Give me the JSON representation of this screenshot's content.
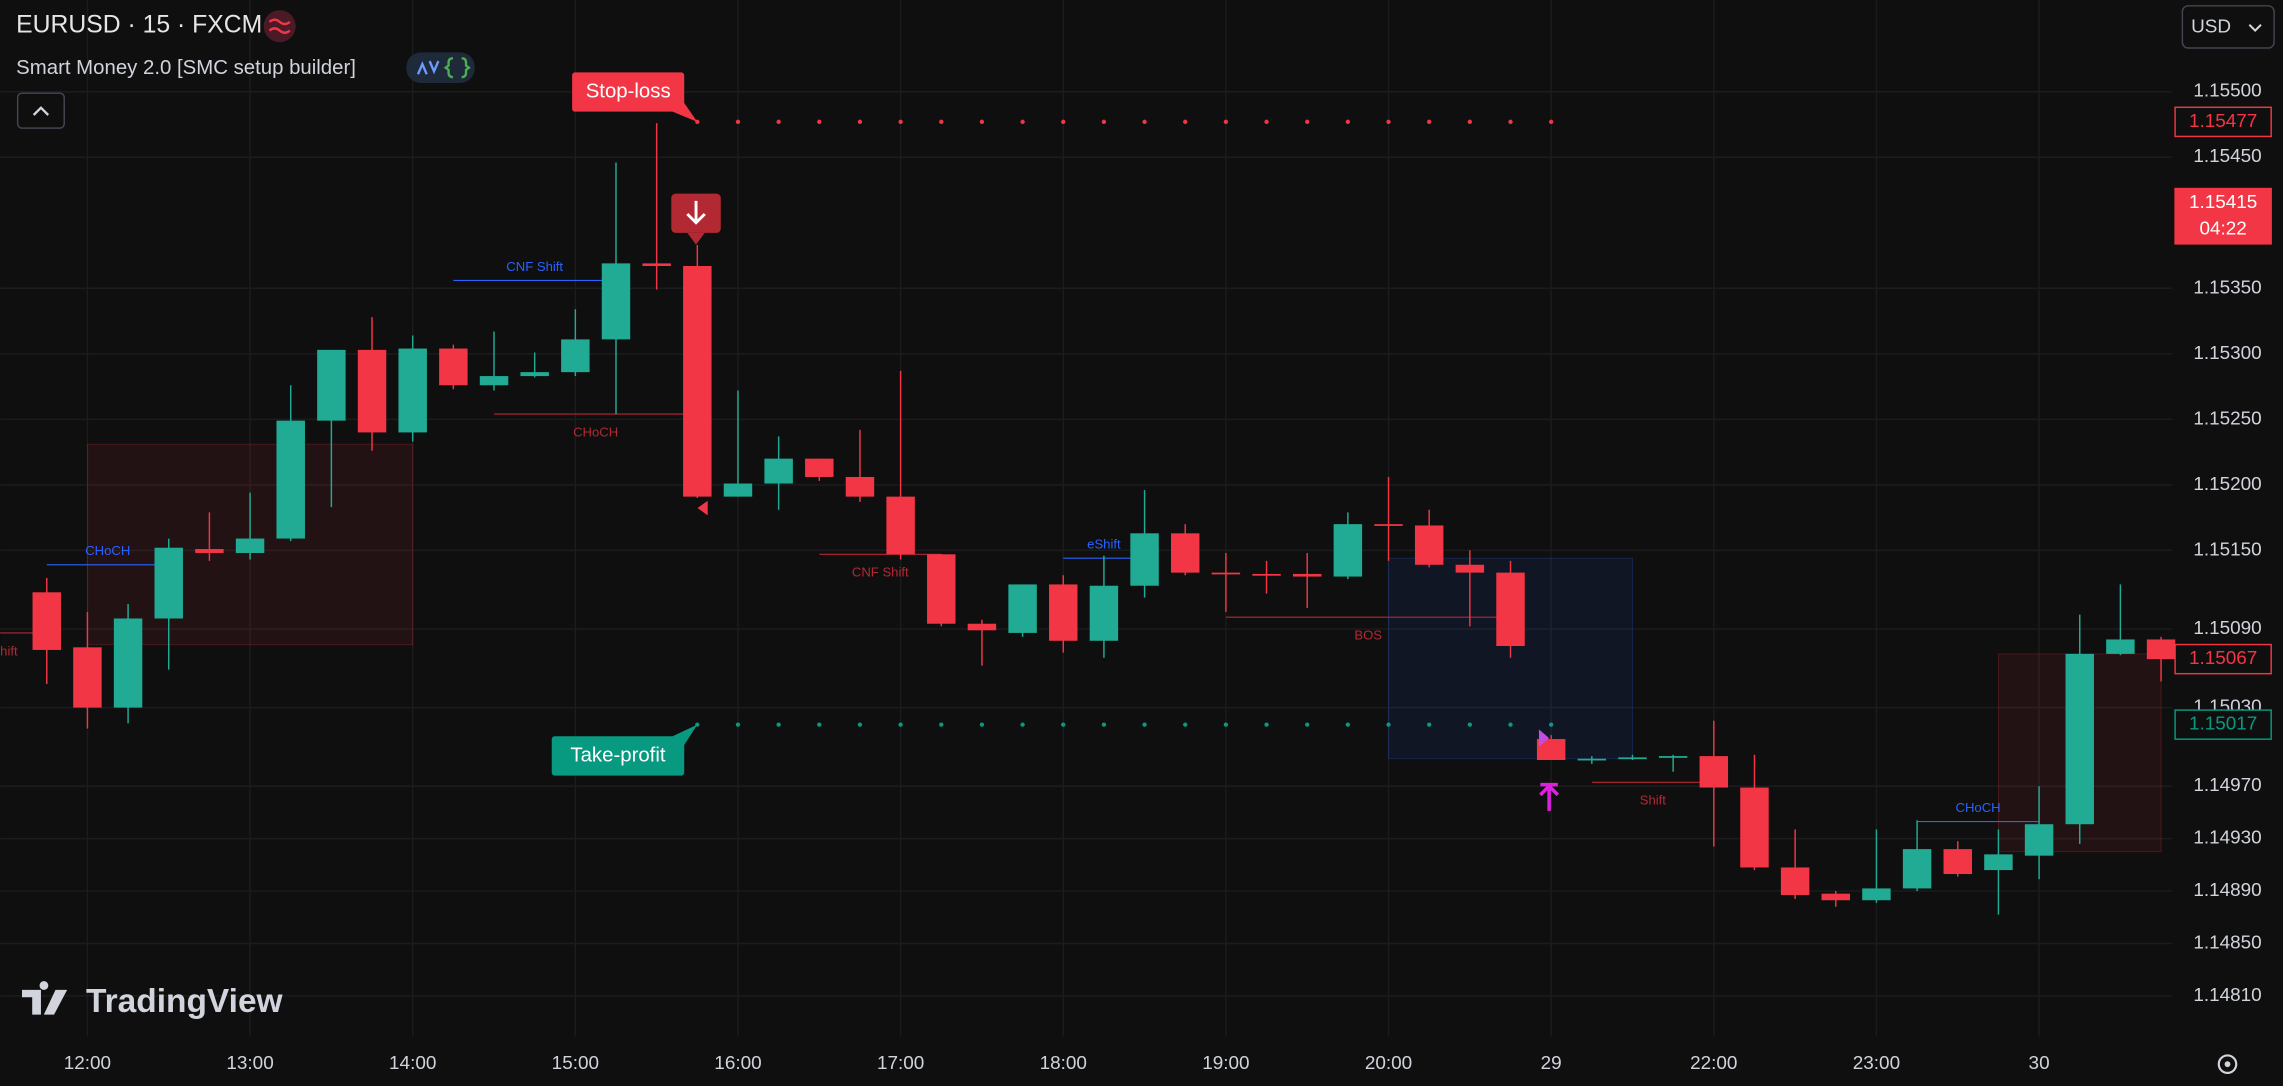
{
  "header": {
    "symbol": "EURUSD · 15 · FXCM",
    "indicator": "Smart Money 2.0 [SMC setup builder]",
    "currency": "USD",
    "brand": "TradingView"
  },
  "chart_data": {
    "type": "candlestick",
    "categories": [
      null,
      "12:00",
      null,
      null,
      null,
      "13:00",
      null,
      null,
      null,
      "14:00",
      null,
      null,
      null,
      "15:00",
      null,
      null,
      null,
      "16:00",
      null,
      null,
      null,
      "17:00",
      null,
      null,
      null,
      "18:00",
      null,
      null,
      null,
      "19:00",
      null,
      null,
      null,
      "20:00",
      null,
      null,
      null,
      "29",
      null,
      null,
      null,
      "22:00",
      null,
      null,
      null,
      "23:00",
      null,
      null,
      null,
      "30",
      null,
      null,
      null
    ],
    "open": [
      1.15118,
      1.15076,
      1.1503,
      1.15098,
      1.15151,
      1.15148,
      1.15159,
      1.15249,
      1.15303,
      1.1524,
      1.15304,
      1.15276,
      1.15283,
      1.15286,
      1.15311,
      1.15369,
      1.15367,
      1.15191,
      1.15201,
      1.1522,
      1.15206,
      1.15191,
      1.15147,
      1.15094,
      1.15087,
      1.15124,
      1.15081,
      1.15123,
      1.15163,
      1.15133,
      1.15132,
      1.15132,
      1.1513,
      1.1517,
      1.15169,
      1.15139,
      1.15133,
      1.15006,
      1.1499,
      1.14991,
      1.14992,
      1.14993,
      1.14969,
      1.14908,
      1.14888,
      1.14883,
      1.14892,
      1.14922,
      1.14906,
      1.14917,
      1.14941,
      1.15071,
      1.15082
    ],
    "high": [
      1.15129,
      1.15103,
      1.15109,
      1.15159,
      1.15179,
      1.15194,
      1.15276,
      1.15303,
      1.15328,
      1.15314,
      1.15307,
      1.15317,
      1.15301,
      1.15334,
      1.15446,
      1.15476,
      1.15383,
      1.15272,
      1.15237,
      1.1522,
      1.15242,
      1.15287,
      1.15147,
      1.15097,
      1.15124,
      1.15131,
      1.15146,
      1.15196,
      1.1517,
      1.15148,
      1.15142,
      1.15148,
      1.15179,
      1.15206,
      1.15181,
      1.1515,
      1.15142,
      1.15009,
      1.14993,
      1.14994,
      1.14994,
      1.1502,
      1.14994,
      1.14937,
      1.1489,
      1.14937,
      1.14944,
      1.14928,
      1.14937,
      1.1497,
      1.15101,
      1.15124,
      1.15084
    ],
    "low": [
      1.15048,
      1.15014,
      1.15018,
      1.15059,
      1.15142,
      1.15143,
      1.15157,
      1.15183,
      1.15226,
      1.15233,
      1.15273,
      1.15272,
      1.15282,
      1.15283,
      1.15254,
      1.15349,
      1.1519,
      1.15191,
      1.15181,
      1.15203,
      1.15187,
      1.15143,
      1.15092,
      1.15062,
      1.15084,
      1.15072,
      1.15068,
      1.15114,
      1.15131,
      1.15103,
      1.15117,
      1.15106,
      1.15128,
      1.15142,
      1.15137,
      1.15092,
      1.15068,
      1.1499,
      1.14987,
      1.1499,
      1.14981,
      1.14924,
      1.14906,
      1.14884,
      1.14878,
      1.14881,
      1.1489,
      1.14901,
      1.14872,
      1.14899,
      1.14926,
      1.1507,
      1.1505
    ],
    "close": [
      1.15074,
      1.1503,
      1.15098,
      1.15152,
      1.15148,
      1.15159,
      1.15249,
      1.15303,
      1.1524,
      1.15304,
      1.15276,
      1.15283,
      1.15286,
      1.15311,
      1.15369,
      1.15367,
      1.15191,
      1.15201,
      1.1522,
      1.15206,
      1.15191,
      1.15147,
      1.15094,
      1.15089,
      1.15124,
      1.15081,
      1.15123,
      1.15163,
      1.15133,
      1.15132,
      1.15131,
      1.1513,
      1.1517,
      1.15169,
      1.15139,
      1.15133,
      1.15077,
      1.1499,
      1.14991,
      1.14992,
      1.14993,
      1.14969,
      1.14908,
      1.14887,
      1.14883,
      1.14892,
      1.14922,
      1.14903,
      1.14918,
      1.14941,
      1.15071,
      1.15082,
      1.15067
    ],
    "up_color": "#22ab94",
    "down_color": "#f23645",
    "ylim": [
      1.14779,
      1.1557
    ],
    "yticks": [
      {
        "value": 1.155,
        "label": "1.15500"
      },
      {
        "value": 1.1545,
        "label": "1.15450"
      },
      {
        "value": 1.1535,
        "label": "1.15350"
      },
      {
        "value": 1.153,
        "label": "1.15300"
      },
      {
        "value": 1.1525,
        "label": "1.15250"
      },
      {
        "value": 1.152,
        "label": "1.15200"
      },
      {
        "value": 1.1515,
        "label": "1.15150"
      },
      {
        "value": 1.1509,
        "label": "1.15090"
      },
      {
        "value": 1.1503,
        "label": "1.15030"
      },
      {
        "value": 1.1497,
        "label": "1.14970"
      },
      {
        "value": 1.1493,
        "label": "1.14930"
      },
      {
        "value": 1.1489,
        "label": "1.14890"
      },
      {
        "value": 1.1485,
        "label": "1.14850"
      },
      {
        "value": 1.1481,
        "label": "1.14810"
      }
    ],
    "grid": true,
    "zones": [
      {
        "low": 1.15078,
        "high": 1.15231,
        "start": 1,
        "end": 9,
        "color": "#f23645"
      },
      {
        "low": 1.14991,
        "high": 1.15144,
        "start": 33,
        "end": 39,
        "color": "#2962ff"
      },
      {
        "low": 1.1492,
        "high": 1.15071,
        "start": 48,
        "end": 52,
        "color": "#f23645"
      }
    ],
    "levels": [
      {
        "label": "CHoCH",
        "value": 1.15139,
        "start": 0,
        "end": 3,
        "color": "#2962ff",
        "side": "above"
      },
      {
        "label": "hift",
        "value": 1.15087,
        "start": 0,
        "end": 0,
        "color": "#b22833",
        "side": "below"
      },
      {
        "label": "CNF Shift",
        "value": 1.15356,
        "start": 10,
        "end": 14,
        "color": "#2962ff",
        "side": "above"
      },
      {
        "label": "CHoCH",
        "value": 1.15254,
        "start": 11,
        "end": 16,
        "color": "#b22833",
        "side": "below"
      },
      {
        "label": "CNF Shift",
        "value": 1.15147,
        "start": 19,
        "end": 22,
        "color": "#b22833",
        "side": "below"
      },
      {
        "label": "eShift",
        "value": 1.15144,
        "start": 25,
        "end": 27,
        "color": "#2962ff",
        "side": "above"
      },
      {
        "label": "BOS",
        "value": 1.15099,
        "start": 29,
        "end": 36,
        "color": "#b22833",
        "side": "below"
      },
      {
        "label": "Shift",
        "value": 1.14973,
        "start": 38,
        "end": 41,
        "color": "#b22833",
        "side": "below"
      },
      {
        "label": "CHoCH",
        "value": 1.14943,
        "start": 46,
        "end": 49,
        "color": "#2962ff",
        "side": "above"
      }
    ],
    "stop_loss": {
      "label": "Stop-loss",
      "value": 1.15477,
      "start": 16,
      "end": 37,
      "color": "#f23645"
    },
    "take_profit": {
      "label": "Take-profit",
      "value": 1.15017,
      "start": 16,
      "end": 37,
      "color": "#089981"
    },
    "price_labels": [
      {
        "value": 1.15477,
        "color": "#f23645",
        "style": "outline"
      },
      {
        "value": 1.15415,
        "color": "#f23645",
        "style": "filled",
        "countdown": "04:22"
      },
      {
        "value": 1.15067,
        "color": "#f23645",
        "style": "outline"
      },
      {
        "value": 1.15017,
        "color": "#089981",
        "style": "outline"
      }
    ]
  }
}
